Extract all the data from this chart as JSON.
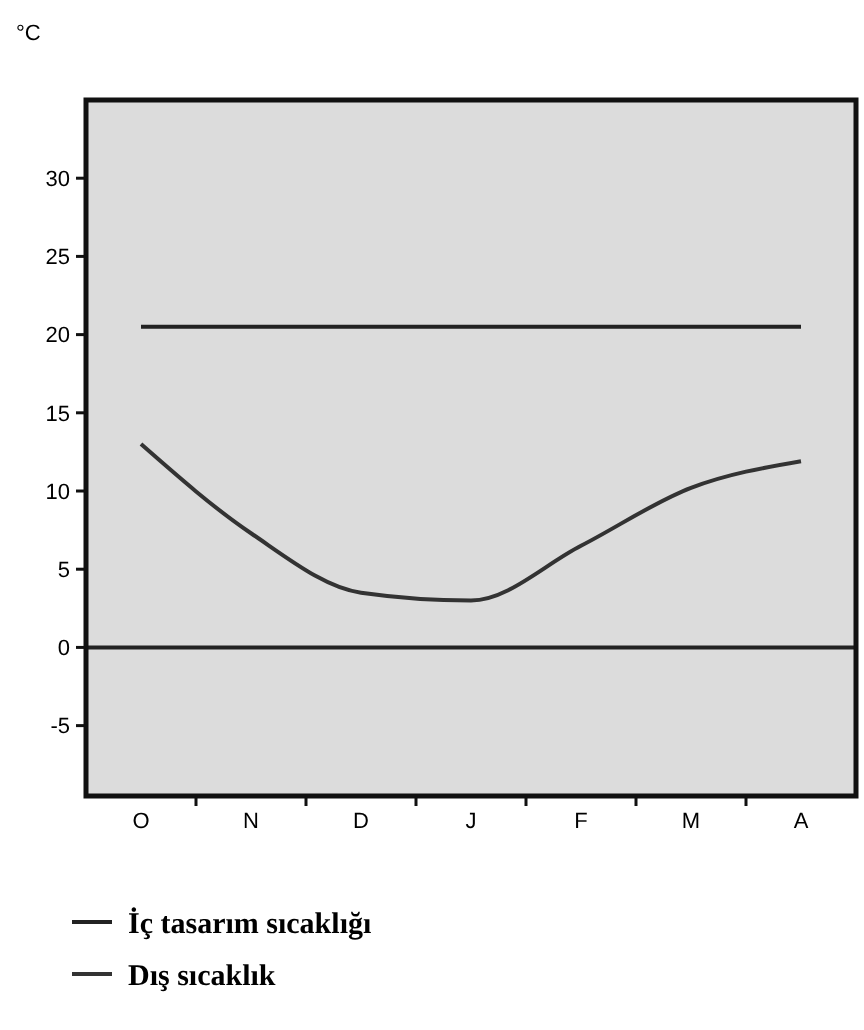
{
  "chart_data": {
    "type": "line",
    "ylabel": "°C",
    "categories": [
      "O",
      "N",
      "D",
      "J",
      "F",
      "M",
      "A"
    ],
    "ylim": [
      -9.5,
      35
    ],
    "yticks": [
      -5,
      0,
      5,
      10,
      15,
      20,
      25,
      30
    ],
    "series": [
      {
        "name": "İç tasarım sıcaklığı",
        "color": "#222222",
        "line_style": "solid",
        "values": [
          20.5,
          20.5,
          20.5,
          20.5,
          20.5,
          20.5,
          20.5
        ]
      },
      {
        "name": "Dış sıcaklık",
        "color": "#333333",
        "line_style": "solid",
        "values": [
          13,
          7.3,
          3.5,
          3,
          6.5,
          10.2,
          11.9
        ]
      }
    ],
    "ref_lines": [
      {
        "axis": "y",
        "value": 0,
        "label": null,
        "color": "#222222"
      }
    ],
    "legend": "bottom",
    "grid": false
  }
}
